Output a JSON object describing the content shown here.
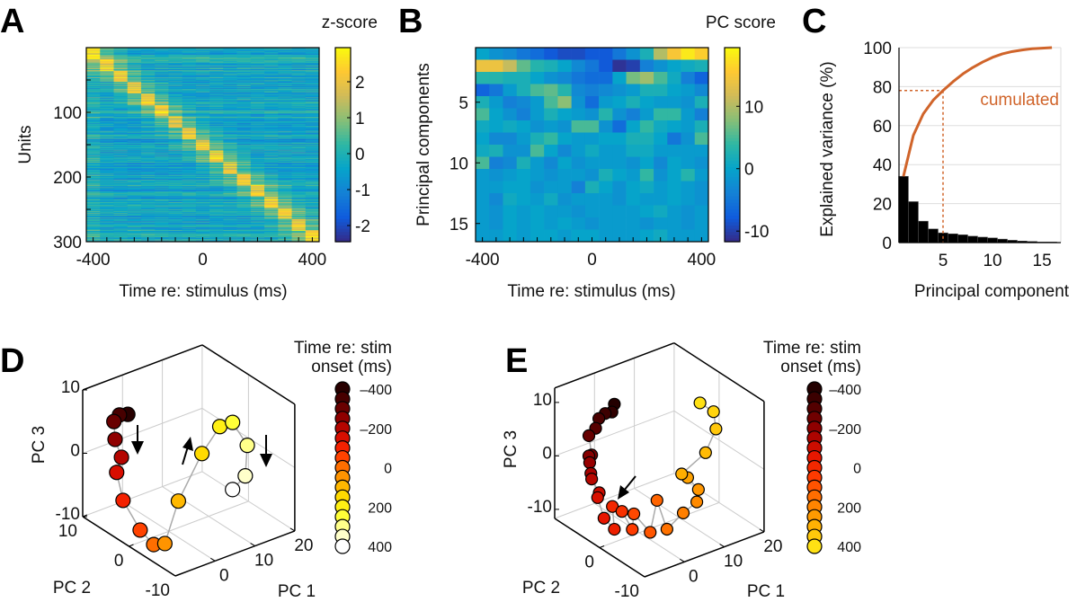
{
  "panel_labels": {
    "a": "A",
    "b": "B",
    "c": "C",
    "d": "D",
    "e": "E"
  },
  "chart_data": [
    {
      "panel": "A",
      "type": "heatmap",
      "xlabel": "Time re: stimulus (ms)",
      "ylabel": "Units",
      "colorbar_label": "z-score",
      "colormap": "parula",
      "x_bins": [
        -400,
        -350,
        -300,
        -250,
        -200,
        -150,
        -100,
        -50,
        0,
        50,
        100,
        150,
        200,
        250,
        300,
        350,
        400
      ],
      "xlim": [
        -425,
        425
      ],
      "ylim": [
        0,
        300
      ],
      "xticks": [
        "-400",
        "0",
        "400"
      ],
      "yticks": [
        "100",
        "200",
        "300"
      ],
      "n_units": 300,
      "colorbar_range": [
        -2.45,
        2.95
      ],
      "colorbar_ticks": [
        "2",
        "1",
        "0",
        "-1",
        "-2"
      ]
    },
    {
      "panel": "B",
      "type": "heatmap",
      "xlabel": "Time re: stimulus (ms)",
      "ylabel": "Principal components",
      "colorbar_label": "PC score",
      "colormap": "parula",
      "x_bins": [
        -400,
        -350,
        -300,
        -250,
        -200,
        -150,
        -100,
        -50,
        0,
        50,
        100,
        150,
        200,
        250,
        300,
        350,
        400
      ],
      "xticks": [
        "-400",
        "0",
        "400"
      ],
      "yticks": [
        "5",
        "10",
        "15"
      ],
      "colorbar_range": [
        -11.7,
        19.4
      ],
      "colorbar_ticks": [
        "10",
        "0",
        "-10"
      ],
      "values": [
        [
          0,
          -2,
          -3,
          -5,
          -6,
          -8,
          -9,
          -9,
          -8,
          -8,
          -5,
          -2,
          2,
          10,
          15,
          18,
          16
        ],
        [
          14,
          14,
          11,
          6,
          3,
          2,
          0,
          -3,
          -5,
          -8,
          -11,
          -10,
          -4,
          -2,
          0,
          1,
          2
        ],
        [
          3,
          3,
          2,
          2,
          0,
          -2,
          -3,
          -5,
          -6,
          -6,
          0,
          7,
          9,
          5,
          1,
          -4,
          -7
        ],
        [
          -7,
          -5,
          -1,
          2,
          5,
          6,
          3,
          -3,
          -4,
          -3,
          -2,
          -1,
          2,
          2,
          0,
          -1,
          -3
        ],
        [
          2,
          -1,
          -4,
          -3,
          -1,
          5,
          8,
          -2,
          -6,
          -1,
          0,
          2,
          0,
          -1,
          -1,
          -2,
          2
        ],
        [
          5,
          0,
          -2,
          -4,
          -1,
          2,
          0,
          -1,
          -2,
          3,
          -2,
          -4,
          -1,
          4,
          4,
          -1,
          -4
        ],
        [
          1,
          0,
          1,
          0,
          -2,
          -1,
          -2,
          5,
          5,
          -2,
          -6,
          0,
          4,
          1,
          0,
          -1,
          2
        ],
        [
          0,
          -3,
          -3,
          -1,
          2,
          4,
          0,
          -1,
          -1,
          0,
          0,
          2,
          2,
          0,
          -5,
          -2,
          5
        ],
        [
          1,
          2,
          -2,
          -2,
          5,
          0,
          -3,
          -1,
          1,
          -1,
          -1,
          1,
          1,
          -1,
          -1,
          -1,
          -1
        ],
        [
          5,
          -4,
          -3,
          2,
          -1,
          -3,
          0,
          -2,
          -1,
          -1,
          -1,
          -2,
          0,
          -3,
          0,
          -1,
          -2
        ],
        [
          -1,
          -2,
          -1,
          0,
          -1,
          -2,
          -1,
          -1,
          -2,
          2,
          0,
          -1,
          4,
          -2,
          0,
          3,
          -1
        ],
        [
          -1,
          -1,
          0,
          0,
          -2,
          -1,
          -1,
          -4,
          2,
          0,
          -2,
          0,
          1,
          -1,
          0,
          -1,
          -2
        ],
        [
          -1,
          -3,
          1,
          0,
          -1,
          1,
          -2,
          -1,
          -1,
          -1,
          -2,
          0,
          -1,
          -1,
          0,
          -1,
          -2
        ],
        [
          -1,
          -2,
          0,
          -1,
          0,
          -1,
          -1,
          -2,
          -1,
          -1,
          -1,
          -1,
          0,
          1,
          -1,
          -2,
          -1
        ],
        [
          -1,
          -2,
          0,
          -1,
          0,
          -1,
          0,
          -1,
          -2,
          -1,
          -1,
          -1,
          -2,
          -1,
          -1,
          -2,
          -1
        ],
        [
          -1,
          -1,
          0,
          -1,
          0,
          0,
          -1,
          0,
          0,
          -1,
          -1,
          -1,
          0,
          1,
          -1,
          -1,
          -1
        ]
      ]
    },
    {
      "panel": "C",
      "type": "bar",
      "xlabel": "Principal component",
      "ylabel": "Explained variance (%)",
      "categories": [
        1,
        2,
        3,
        4,
        5,
        6,
        7,
        8,
        9,
        10,
        11,
        12,
        13,
        14,
        15,
        16
      ],
      "values": [
        34,
        21,
        11,
        7,
        5,
        4.5,
        4,
        3.3,
        2.8,
        2.4,
        1.8,
        1.2,
        0.8,
        0.6,
        0.3,
        0.3
      ],
      "cumulative": [
        34,
        55,
        66,
        73,
        78,
        82.5,
        86.5,
        89.8,
        92.6,
        95,
        96.8,
        98,
        98.8,
        99.4,
        99.7,
        100
      ],
      "line_label": "cumulated",
      "line_color": "#d0642a",
      "bar_color": "#000000",
      "threshold": {
        "component": 5,
        "cumulative": 78
      },
      "ylim": [
        0,
        100
      ],
      "xlim": [
        0.55,
        16.9
      ],
      "xticks": [
        "5",
        "10",
        "15"
      ],
      "yticks": [
        "0",
        "20",
        "40",
        "60",
        "80",
        "100"
      ],
      "grid": true
    },
    {
      "panel": "D",
      "type": "scatter3d",
      "xlabel": "PC 1",
      "ylabel": "PC 2",
      "zlabel": "PC 3",
      "colorbar_label_1": "Time re: stim",
      "colorbar_label_2": "onset (ms)",
      "colorbar_ticks": [
        "–400",
        "–200",
        "0",
        "200",
        "400"
      ],
      "colormap": "hot",
      "xlim": [
        -10,
        20
      ],
      "ylim": [
        -10,
        10
      ],
      "zlim": [
        -10,
        10
      ],
      "xticks": [
        "0",
        "10",
        "20"
      ],
      "yticks": [
        "-10",
        "0",
        "10"
      ],
      "zticks": [
        "-10",
        "0",
        "10"
      ],
      "time_ms": [
        -400,
        -350,
        -300,
        -250,
        -200,
        -150,
        -100,
        -50,
        0,
        50,
        100,
        150,
        200,
        250,
        300,
        350,
        400
      ],
      "pc1": [
        -10.3,
        -12.4,
        -13.8,
        -13.5,
        -11.9,
        -13.1,
        -11.5,
        -7.2,
        -3.8,
        -1.0,
        2.4,
        8.3,
        12.8,
        16,
        19.7,
        19.2,
        16
      ],
      "pc2": [
        0,
        0,
        0,
        0,
        0,
        0,
        0,
        0,
        0,
        0,
        0,
        0,
        0,
        0,
        0,
        0,
        0
      ],
      "pc3": [
        10.9,
        11.3,
        10.6,
        7.7,
        4.5,
        2.4,
        -2.4,
        -8.1,
        -11.2,
        -11.7,
        -5.8,
        0.3,
        3.5,
        3.4,
        -1.1,
        -5.8,
        -7.2
      ]
    },
    {
      "panel": "E",
      "type": "scatter3d",
      "xlabel": "PC 1",
      "ylabel": "PC 2",
      "zlabel": "PC 3",
      "colorbar_label_1": "Time re: stim",
      "colorbar_label_2": "onset (ms)",
      "colorbar_ticks": [
        "–400",
        "–200",
        "0",
        "200",
        "400"
      ],
      "colormap": "hot",
      "xlim": [
        -10,
        20
      ],
      "ylim": [
        -10,
        10
      ],
      "zlim": [
        -11.7,
        12.7
      ],
      "xticks": [
        "0",
        "10",
        "20"
      ],
      "yticks": [
        "-10",
        "0"
      ],
      "zticks": [
        "-10",
        "0",
        "10"
      ],
      "pc1": [
        -6.3,
        -6.9,
        -8.6,
        -10.2,
        -11,
        -12.7,
        -12,
        -12.7,
        -12.5,
        -12.2,
        -12,
        -10.1,
        -10.5,
        -8.9,
        -6.3,
        -6.8,
        -4.4,
        -1.8,
        -1.4,
        2.7,
        4.4,
        6.9,
        11,
        14.4,
        14.8,
        12.1,
        10.6,
        16.6,
        19.2,
        18.6,
        15.2
      ],
      "pc2": [
        0,
        0,
        0,
        0,
        0,
        0,
        0,
        0,
        0,
        0,
        0,
        0,
        0,
        0,
        0,
        0,
        0,
        0,
        0,
        0,
        0,
        0,
        0,
        0,
        0,
        0,
        0,
        0,
        0,
        0,
        0
      ],
      "pc3": [
        14.1,
        12.8,
        13.0,
        12.5,
        10.9,
        10.0,
        6.2,
        6.2,
        4.9,
        2.8,
        1.7,
        -1.4,
        -2.2,
        -6.5,
        -9.3,
        -4.9,
        -6.5,
        -10.6,
        -7.8,
        -12.4,
        -6.9,
        -13.0,
        -11.1,
        -10.0,
        -7.8,
        -4.8,
        -3.7,
        -1.4,
        2.3,
        5.7,
        8.3
      ]
    }
  ]
}
